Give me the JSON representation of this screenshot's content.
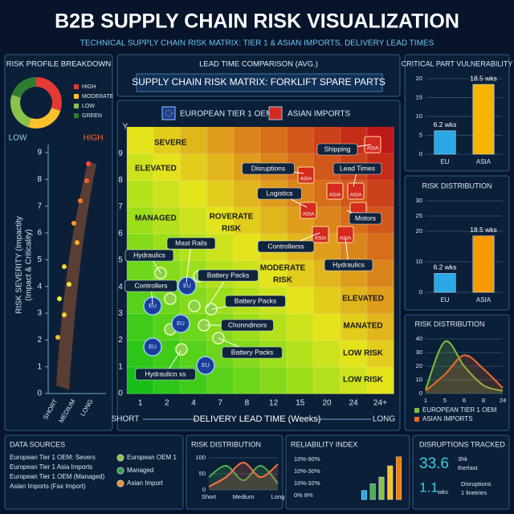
{
  "header": {
    "title": "B2B SUPPLY CHAIN RISK VISUALIZATION",
    "subtitle": "TECHNICAL SUPPLY CHAIN RISK MATRIX: TIER 1 & ASIAN IMPORTS, DELIVERY LEAD TIMES"
  },
  "risk_profile": {
    "title": "RISK PROFILE BREAKDOWN",
    "legend": [
      {
        "label": "HIGH",
        "color": "#e53935"
      },
      {
        "label": "MODERATE",
        "color": "#fbc02d"
      },
      {
        "label": "LOW",
        "color": "#8bc34a"
      },
      {
        "label": "GREEN",
        "color": "#2e7d32"
      }
    ],
    "donut_values": [
      30,
      25,
      25,
      20
    ],
    "low": "LOW",
    "high": "HIGH",
    "y_label_1": "RISK SEVERITY (Impactity",
    "y_label_2": "(Impact & Criticality)",
    "ylim": [
      0,
      9
    ],
    "yticks": [
      0,
      1,
      2,
      3,
      4,
      5,
      6,
      7,
      8,
      9
    ],
    "x_labels": [
      "SHORT",
      "MEDIUM",
      "LONG"
    ]
  },
  "lead_time": {
    "title": "LEAD TIME COMPARISON (AVG.)",
    "matrix_title": "SUPPLY CHAIN RISK MATRIX: FORKLIFT SPARE PARTS"
  },
  "matrix": {
    "legend": [
      "EUROPEAN TIER 1 OEM",
      "ASIAN IMPORTS"
    ],
    "y_axis": "Y",
    "ylim": [
      0,
      10
    ],
    "yticks": [
      0,
      1,
      2,
      3,
      4,
      5,
      6,
      7,
      8,
      9
    ],
    "xticks": [
      "1",
      "2",
      "4",
      "7",
      "8",
      "12",
      "15",
      "20",
      "24",
      "24+"
    ],
    "x_short": "SHORT",
    "x_long": "LONG",
    "x_title": "DELIVERY LEAD TIME (Weeks)",
    "eu_tag": "EU",
    "asia_tag": "ASIA",
    "zones": [
      [
        "SEVERE"
      ],
      [
        "ELEVATED"
      ],
      [
        "MANAGED"
      ],
      [
        "ROVERATE",
        "RISK"
      ],
      [
        "MODERATE",
        "RISK"
      ],
      [
        "ELEVATED"
      ],
      [
        "MANATED"
      ],
      [
        "LOW RISK"
      ],
      [
        "LOW RISK"
      ]
    ],
    "callouts": [
      "Shipping",
      "Disruptions",
      "Lead Times",
      "Logistics",
      "Motors",
      "Controllerss",
      "Hydraulics",
      "Mast Rails",
      "Hydraulics",
      "Battery Packs",
      "Controllers",
      "Battery Packs",
      "Chonndinors",
      "Battery Packs",
      "Hydraulicn xs"
    ]
  },
  "chart_data": [
    {
      "type": "bar",
      "title": "CRITICAL PART VULNERABILITY",
      "categories": [
        "EU",
        "ASIA"
      ],
      "values": [
        6.2,
        18.5
      ],
      "value_labels": [
        "6.2 wks",
        "18.5 wks"
      ],
      "colors": [
        "#2ba8e6",
        "#f5b400"
      ],
      "ylim": [
        0,
        20
      ],
      "yticks": [
        0,
        5,
        10,
        15,
        20
      ],
      "grid": true
    },
    {
      "type": "bar",
      "title": "RISK DISTRIBUTION",
      "categories": [
        "EU",
        "ASIA"
      ],
      "values": [
        6.2,
        18.5
      ],
      "value_labels": [
        "6.2 wks",
        "18.5 wks"
      ],
      "colors": [
        "#2ba8e6",
        "#f59a00"
      ],
      "ylim": [
        0,
        30
      ],
      "yticks": [
        0,
        10,
        20,
        25,
        30
      ],
      "grid": true
    },
    {
      "type": "line",
      "title": "RISK DISTRIBUTION",
      "categories": [
        "1",
        "5",
        "6",
        "8",
        "24"
      ],
      "ylim": [
        0,
        40
      ],
      "yticks": [
        0,
        10,
        20,
        30,
        40
      ],
      "grid": true,
      "series": [
        {
          "name": "EUROPEAN TIER 1 OEM",
          "color": "#7cc242",
          "values": [
            3,
            38,
            20,
            6,
            2
          ]
        },
        {
          "name": "ASIAN IMPORTS",
          "color": "#f26b2a",
          "values": [
            2,
            14,
            28,
            18,
            4
          ]
        }
      ]
    },
    {
      "type": "line",
      "title": "RISK DISTRIBUTION",
      "categories": [
        "Short",
        null,
        "Medium",
        null,
        "Long"
      ],
      "ylim": [
        0,
        100
      ],
      "yticks": [
        0,
        50,
        100
      ],
      "grid": true,
      "series": [
        {
          "color": "#4caf50",
          "values": [
            40,
            75,
            30,
            75,
            20
          ]
        },
        {
          "color": "#ff7043",
          "values": [
            10,
            40,
            85,
            40,
            80
          ]
        }
      ]
    },
    {
      "type": "bar",
      "title": "RELIABILITY INDEX",
      "labels": [
        "10%-90%",
        "10%-30%",
        "10%-32%",
        "0% 8%"
      ],
      "categories": [
        null,
        null,
        null,
        null,
        null
      ],
      "values": [
        20,
        35,
        50,
        75,
        95
      ],
      "colors": [
        "#2ba8e6",
        "#4caf50",
        "#8bc34a",
        "#fbc02d",
        "#f57c00"
      ],
      "ylim": [
        0,
        100
      ],
      "grid": false
    }
  ],
  "data_sources": {
    "title": "DATA SOURCES",
    "lines": [
      "European Tier 1 OEM: Severs",
      "European Tier 1 Asia Imports",
      "European Tier 1 OEM (Managed)",
      "Asian Imports (Fax Import)"
    ],
    "legend": [
      {
        "label": "European OEM 1",
        "color": "#8bc34a"
      },
      {
        "label": "Managed",
        "color": "#2e9d4a"
      },
      {
        "label": "Asian Import",
        "color": "#f28c28"
      }
    ]
  },
  "disruptions": {
    "title": "DISRUPTIONS TRACKED",
    "big_1": "33.6",
    "unit_1a": "3hk",
    "unit_1b": "therlast",
    "big_2": "1.1",
    "unit_2": "wks",
    "note_a": "Disruptions",
    "note_b": "1 linetries"
  }
}
